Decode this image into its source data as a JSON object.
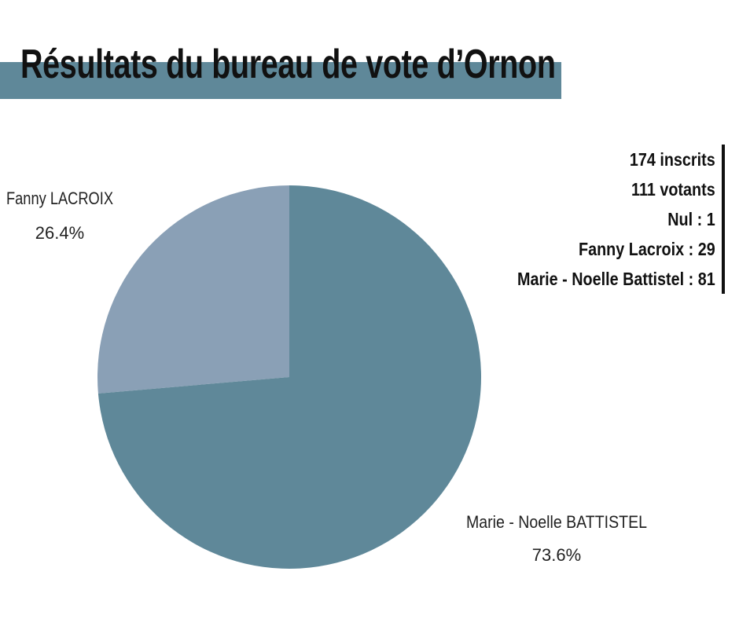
{
  "title": "Résultats du bureau de vote d’Ornon",
  "stats": [
    "174 inscrits",
    "111 votants",
    "Nul : 1",
    "Fanny Lacroix : 29",
    "Marie - Noelle Battistel : 81"
  ],
  "chart_data": {
    "type": "pie",
    "title": "Résultats du bureau de vote d’Ornon",
    "categories": [
      "Fanny LACROIX",
      "Marie - Noelle  BATTISTEL"
    ],
    "values": [
      29,
      81
    ],
    "percent_labels": [
      "26.4%",
      "73.6%"
    ],
    "colors": [
      "#8aa0b6",
      "#5f8899"
    ]
  }
}
